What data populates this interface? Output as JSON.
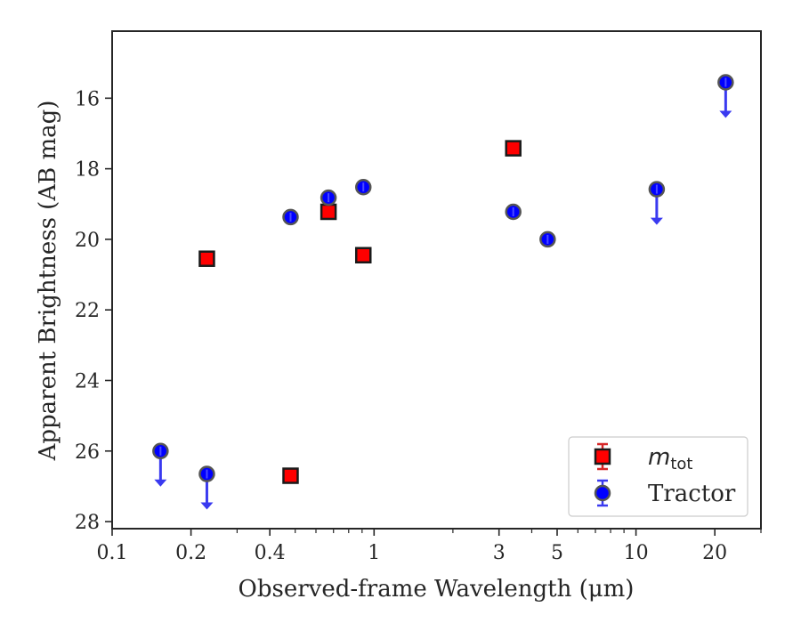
{
  "chart_data": {
    "type": "scatter",
    "xlabel": "Observed-frame Wavelength (μm)",
    "ylabel": "Apparent Brightness (AB mag)",
    "x_scale": "log",
    "y_inverted": true,
    "xlim": [
      0.1,
      30
    ],
    "ylim": [
      28.2,
      14.1
    ],
    "x_ticks": [
      {
        "value": 0.1,
        "label": "0.1"
      },
      {
        "value": 0.2,
        "label": "0.2"
      },
      {
        "value": 0.4,
        "label": "0.4"
      },
      {
        "value": 1,
        "label": "1"
      },
      {
        "value": 3,
        "label": "3"
      },
      {
        "value": 5,
        "label": "5"
      },
      {
        "value": 10,
        "label": "10"
      },
      {
        "value": 20,
        "label": "20"
      }
    ],
    "y_ticks": [
      {
        "value": 16,
        "label": "16"
      },
      {
        "value": 18,
        "label": "18"
      },
      {
        "value": 20,
        "label": "20"
      },
      {
        "value": 22,
        "label": "22"
      },
      {
        "value": 24,
        "label": "24"
      },
      {
        "value": 26,
        "label": "26"
      },
      {
        "value": 28,
        "label": "28"
      }
    ],
    "grid": false,
    "legend_position": "bottom-right",
    "series": [
      {
        "name": "m_tot",
        "legend_main": "m",
        "legend_sub": "tot",
        "marker": "square",
        "color": "#ff0000",
        "edge_color": "#1a1a1a",
        "errorbar_color": "#d62728",
        "points": [
          {
            "x": 0.23,
            "y": 20.55
          },
          {
            "x": 0.48,
            "y": 26.7
          },
          {
            "x": 0.67,
            "y": 19.22
          },
          {
            "x": 0.91,
            "y": 20.45
          },
          {
            "x": 3.4,
            "y": 17.42
          }
        ]
      },
      {
        "name": "Tractor",
        "marker": "circle",
        "color": "#0000ff",
        "edge_color": "#555555",
        "errorbar_color": "#3a3af0",
        "points": [
          {
            "x": 0.153,
            "y": 26.0,
            "upper_limit": true
          },
          {
            "x": 0.23,
            "y": 26.65,
            "upper_limit": true
          },
          {
            "x": 0.48,
            "y": 19.37
          },
          {
            "x": 0.67,
            "y": 18.82
          },
          {
            "x": 0.91,
            "y": 18.52
          },
          {
            "x": 3.4,
            "y": 19.22
          },
          {
            "x": 4.6,
            "y": 20.0
          },
          {
            "x": 12.0,
            "y": 18.58,
            "upper_limit": true
          },
          {
            "x": 22.0,
            "y": 15.55,
            "upper_limit": true
          }
        ]
      }
    ]
  }
}
